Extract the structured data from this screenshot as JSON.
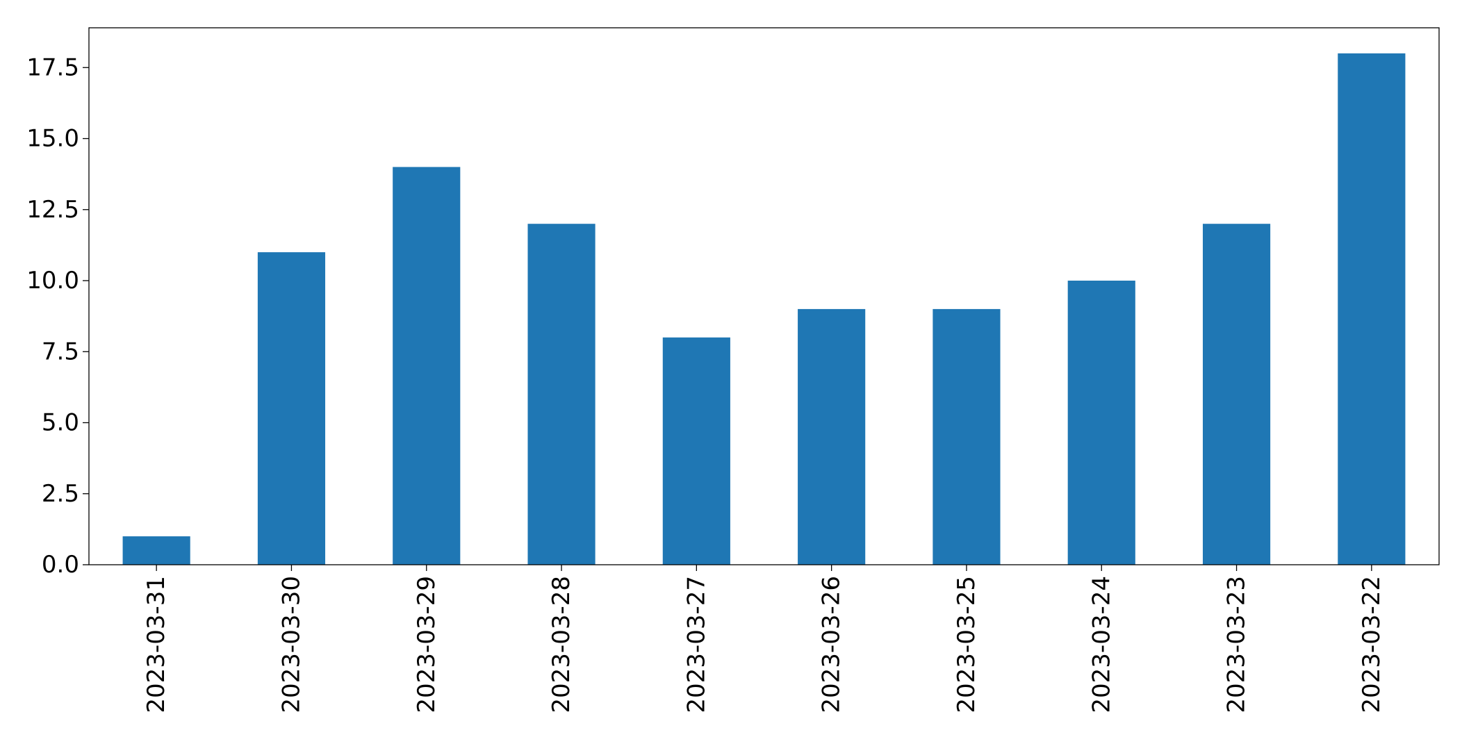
{
  "chart_data": {
    "type": "bar",
    "title": "",
    "xlabel": "",
    "ylabel": "",
    "categories": [
      "2023-03-31",
      "2023-03-30",
      "2023-03-29",
      "2023-03-28",
      "2023-03-27",
      "2023-03-26",
      "2023-03-25",
      "2023-03-24",
      "2023-03-23",
      "2023-03-22"
    ],
    "values": [
      1,
      11,
      14,
      12,
      8,
      9,
      9,
      10,
      12,
      18
    ],
    "ylim": [
      0,
      18.9
    ],
    "yticks": [
      0,
      2.5,
      5,
      7.5,
      10,
      12.5,
      15,
      17.5
    ],
    "ytick_labels": [
      "0.0",
      "2.5",
      "5.0",
      "7.5",
      "10.0",
      "12.5",
      "15.0",
      "17.5"
    ],
    "grid": false,
    "legend": false,
    "bar_color": "#1f77b4",
    "x_tick_rotation": "vertical"
  }
}
